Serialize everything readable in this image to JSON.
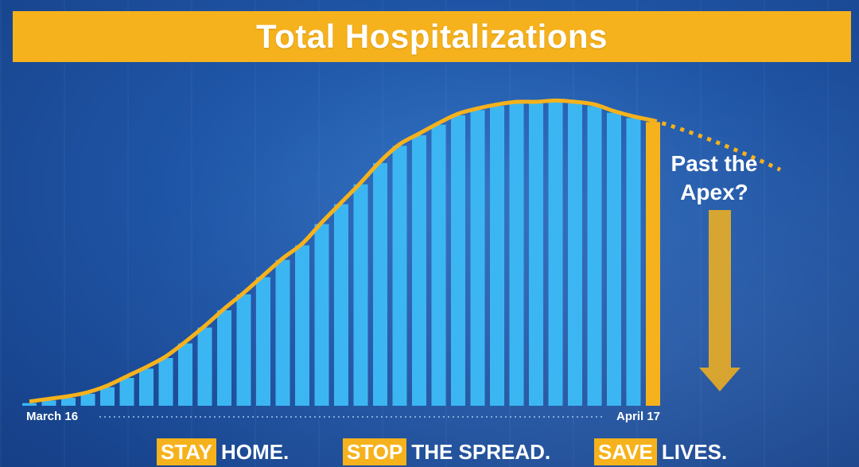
{
  "colors": {
    "accent": "#f6b21c",
    "bar": "#3cb6f2",
    "last_bar": "#f6b21c",
    "background": "#1f55a6",
    "text": "#ffffff"
  },
  "title": "Total Hospitalizations",
  "annotation": {
    "line1": "Past the",
    "line2": "Apex?",
    "icon": "down-arrow-icon"
  },
  "footer": {
    "part1_highlight": "STAY",
    "part1_rest": "HOME.",
    "part2_highlight": "STOP",
    "part2_rest": "THE SPREAD.",
    "part3_highlight": "SAVE",
    "part3_rest": "LIVES."
  },
  "chart_data": {
    "type": "bar",
    "title": "Total Hospitalizations",
    "x_start_label": "March 16",
    "x_end_label": "April 17",
    "values": [
      2,
      4,
      6,
      9,
      14,
      21,
      28,
      36,
      47,
      59,
      72,
      84,
      97,
      110,
      121,
      137,
      152,
      167,
      183,
      196,
      204,
      212,
      219,
      223,
      226,
      228,
      228,
      229,
      228,
      226,
      221,
      217,
      214
    ],
    "highlight_last": true,
    "trend_line": true,
    "projection_line": "dotted decline after last bar",
    "ylim": [
      0,
      240
    ],
    "grid": false
  }
}
